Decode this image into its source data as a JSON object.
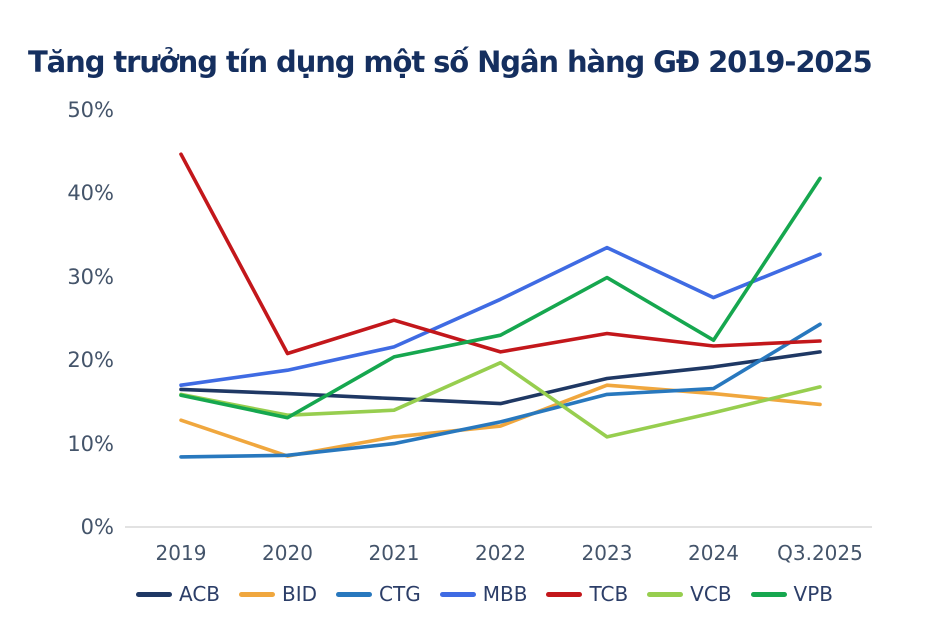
{
  "page": {
    "title": "Tăng trưởng tín dụng một số Ngân hàng GĐ 2019-2025"
  },
  "colors": {
    "background": "#ffffff",
    "title": "#152f5f",
    "axis_label": "#44546a",
    "legend_label": "#2c3e68",
    "axis_line": "#d9d9d9"
  },
  "chart_data": {
    "type": "line",
    "title": "Tăng trưởng tín dụng một số Ngân hàng GĐ 2019-2025",
    "xlabel": "",
    "ylabel": "",
    "ylim": [
      0,
      50
    ],
    "grid": false,
    "legend_position": "bottom",
    "categories": [
      "2019",
      "2020",
      "2021",
      "2022",
      "2023",
      "2024",
      "Q3.2025"
    ],
    "y_ticks": [
      {
        "label": "50%",
        "value": 50
      },
      {
        "label": "40%",
        "value": 40
      },
      {
        "label": "30%",
        "value": 30
      },
      {
        "label": "20%",
        "value": 20
      },
      {
        "label": "10%",
        "value": 10
      },
      {
        "label": "0%",
        "value": 0
      }
    ],
    "unit": "%",
    "series": [
      {
        "name": "ACB",
        "color": "#1f3864",
        "values": [
          16.5,
          16.0,
          15.4,
          14.8,
          17.8,
          19.2,
          21.0
        ]
      },
      {
        "name": "BID",
        "color": "#f0a73e",
        "values": [
          12.8,
          8.5,
          10.8,
          12.1,
          17.0,
          16.0,
          14.7
        ]
      },
      {
        "name": "CTG",
        "color": "#2878be",
        "values": [
          8.4,
          8.6,
          10.0,
          12.6,
          15.9,
          16.6,
          24.3
        ]
      },
      {
        "name": "MBB",
        "color": "#3f6be3",
        "values": [
          17.0,
          18.8,
          21.6,
          27.3,
          33.5,
          27.5,
          32.7
        ]
      },
      {
        "name": "TCB",
        "color": "#c3171b",
        "values": [
          44.7,
          20.8,
          24.8,
          21.0,
          23.2,
          21.7,
          22.3
        ]
      },
      {
        "name": "VCB",
        "color": "#97ce4f",
        "values": [
          15.9,
          13.4,
          14.0,
          19.7,
          10.8,
          13.7,
          16.8
        ]
      },
      {
        "name": "VPB",
        "color": "#16a74f",
        "values": [
          15.8,
          13.1,
          20.4,
          23.0,
          29.9,
          22.4,
          41.8
        ]
      }
    ]
  }
}
